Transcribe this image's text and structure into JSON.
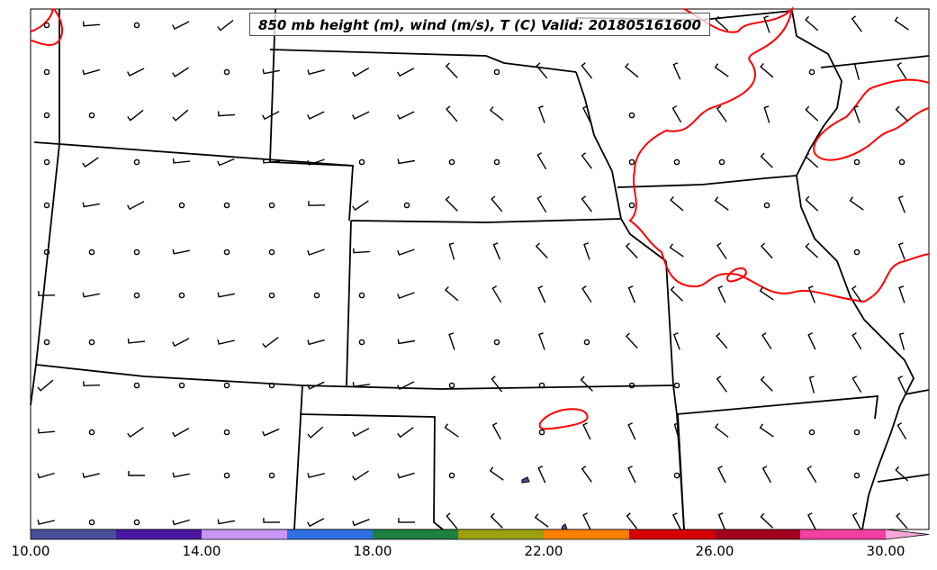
{
  "title": "850 mb height (m), wind (m/s), T (C) Valid: 201805161600",
  "colorbar": {
    "ticks": [
      "10.00",
      "14.00",
      "18.00",
      "22.00",
      "26.00",
      "30.00"
    ],
    "colors": [
      "#4a4f9a",
      "#4a18a0",
      "#c896f4",
      "#2f6fe0",
      "#1e8040",
      "#9aa010",
      "#ff7f00",
      "#d40000",
      "#a00020",
      "#f040a0",
      "#f8a8d8"
    ]
  },
  "contour_color": "#ff0000",
  "border_color": "#000000"
}
